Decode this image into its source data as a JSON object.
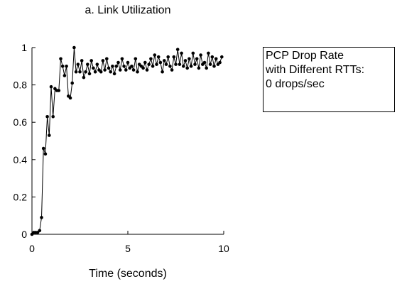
{
  "chart_data": {
    "type": "line",
    "title": "a. Link Utilization",
    "xlabel": "Time (seconds)",
    "ylabel": "",
    "xlim": [
      0,
      10
    ],
    "ylim": [
      0,
      1
    ],
    "x_ticks": [
      0,
      5,
      10
    ],
    "x_tick_labels": [
      "0",
      "5",
      "10"
    ],
    "y_ticks": [
      0,
      0.2,
      0.4,
      0.6,
      0.8,
      1
    ],
    "y_tick_labels": [
      "0",
      "0.2",
      "0.4",
      "0.6",
      "0.8",
      "1"
    ],
    "grid": false,
    "line_color": "#000000",
    "marker": "dot",
    "annotation": [
      "PCP Drop Rate",
      "with Different RTTs:",
      "0 drops/sec"
    ],
    "series": [
      {
        "x": [
          0.0,
          0.1,
          0.2,
          0.3,
          0.4,
          0.5,
          0.6,
          0.7,
          0.8,
          0.9,
          1.0,
          1.1,
          1.2,
          1.3,
          1.4,
          1.5,
          1.6,
          1.7,
          1.8,
          1.9,
          2.0,
          2.1,
          2.2,
          2.3,
          2.4,
          2.5,
          2.6,
          2.7,
          2.8,
          2.9,
          3.0,
          3.1,
          3.2,
          3.3,
          3.4,
          3.5,
          3.6,
          3.7,
          3.8,
          3.9,
          4.0,
          4.1,
          4.2,
          4.3,
          4.4,
          4.5,
          4.6,
          4.7,
          4.8,
          4.9,
          5.0,
          5.1,
          5.2,
          5.3,
          5.4,
          5.5,
          5.6,
          5.7,
          5.8,
          5.9,
          6.0,
          6.1,
          6.2,
          6.3,
          6.4,
          6.5,
          6.6,
          6.7,
          6.8,
          6.9,
          7.0,
          7.1,
          7.2,
          7.3,
          7.4,
          7.5,
          7.6,
          7.7,
          7.8,
          7.9,
          8.0,
          8.1,
          8.2,
          8.3,
          8.4,
          8.5,
          8.6,
          8.7,
          8.8,
          8.9,
          9.0,
          9.1,
          9.2,
          9.3,
          9.4,
          9.5,
          9.6,
          9.7,
          9.8,
          9.9
        ],
        "y": [
          0.0,
          0.01,
          0.01,
          0.01,
          0.02,
          0.09,
          0.46,
          0.43,
          0.63,
          0.53,
          0.79,
          0.63,
          0.78,
          0.77,
          0.77,
          0.94,
          0.9,
          0.85,
          0.9,
          0.74,
          0.73,
          0.81,
          1.0,
          0.87,
          0.91,
          0.87,
          0.93,
          0.84,
          0.87,
          0.91,
          0.86,
          0.93,
          0.89,
          0.87,
          0.91,
          0.88,
          0.87,
          0.93,
          0.88,
          0.94,
          0.89,
          0.87,
          0.9,
          0.86,
          0.9,
          0.92,
          0.88,
          0.94,
          0.9,
          0.88,
          0.92,
          0.89,
          0.9,
          0.88,
          0.94,
          0.87,
          0.91,
          0.9,
          0.89,
          0.92,
          0.88,
          0.91,
          0.94,
          0.9,
          0.96,
          0.91,
          0.95,
          0.92,
          0.87,
          0.93,
          0.91,
          0.95,
          0.9,
          0.88,
          0.95,
          0.91,
          0.99,
          0.91,
          0.97,
          0.9,
          0.93,
          0.89,
          0.94,
          0.9,
          0.97,
          0.91,
          0.94,
          0.89,
          0.96,
          0.91,
          0.92,
          0.89,
          0.97,
          0.91,
          0.95,
          0.9,
          0.94,
          0.91,
          0.92,
          0.95
        ]
      }
    ]
  }
}
